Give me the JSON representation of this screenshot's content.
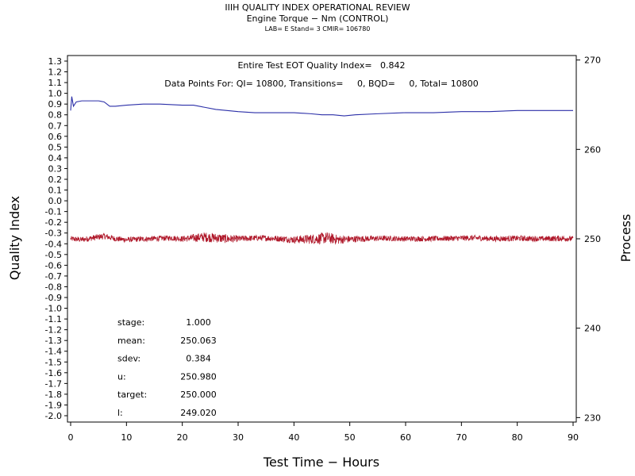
{
  "header": {
    "title": "IIIH QUALITY INDEX OPERATIONAL REVIEW",
    "subtitle": "Engine Torque − Nm (CONTROL)",
    "lab_line": "LAB= E Stand= 3 CMIR= 106780"
  },
  "annotations": {
    "line1": "Entire Test EOT Quality Index=   0.842",
    "line2": "Data Points For: QI= 10800, Transitions=     0, BQD=     0, Total= 10800"
  },
  "stats": [
    {
      "label": "stage:",
      "value": "1.000"
    },
    {
      "label": "mean:",
      "value": "250.063"
    },
    {
      "label": "sdev:",
      "value": "0.384"
    },
    {
      "label": "u:",
      "value": "250.980"
    },
    {
      "label": "target:",
      "value": "250.000"
    },
    {
      "label": "l:",
      "value": "249.020"
    }
  ],
  "chart_data": {
    "type": "line",
    "xlabel": "Test Time − Hours",
    "ylabel": "Quality Index",
    "y2label": "Process",
    "xlim": [
      0,
      90
    ],
    "ylim": [
      -2.0,
      1.3
    ],
    "y2lim": [
      229.5,
      270.5
    ],
    "x_ticks": [
      0,
      10,
      20,
      30,
      40,
      50,
      60,
      70,
      80,
      90
    ],
    "y_ticks": [
      "1.3",
      "1.2",
      "1.1",
      "1.0",
      "0.9",
      "0.8",
      "0.7",
      "0.6",
      "0.5",
      "0.4",
      "0.3",
      "0.2",
      "0.1",
      "0.0",
      "-0.1",
      "-0.2",
      "-0.3",
      "-0.4",
      "-0.5",
      "-0.6",
      "-0.7",
      "-0.8",
      "-0.9",
      "-1.0",
      "-1.1",
      "-1.2",
      "-1.3",
      "-1.4",
      "-1.5",
      "-1.6",
      "-1.7",
      "-1.8",
      "-1.9",
      "-2.0"
    ],
    "y2_ticks": [
      270,
      260,
      250,
      240,
      230
    ],
    "grid": false,
    "series": [
      {
        "axis": "left",
        "color": "#2b2fa8",
        "x": [
          0,
          0.2,
          0.5,
          1,
          2,
          3,
          4,
          5,
          6,
          7,
          8,
          10,
          13,
          16,
          20,
          22,
          24,
          26,
          28,
          30,
          33,
          36,
          40,
          43,
          45,
          47,
          49,
          51,
          55,
          60,
          65,
          70,
          75,
          80,
          85,
          90
        ],
        "y": [
          0.84,
          0.97,
          0.88,
          0.92,
          0.93,
          0.93,
          0.93,
          0.93,
          0.92,
          0.88,
          0.88,
          0.89,
          0.9,
          0.9,
          0.89,
          0.89,
          0.87,
          0.85,
          0.84,
          0.83,
          0.82,
          0.82,
          0.82,
          0.81,
          0.8,
          0.8,
          0.79,
          0.8,
          0.81,
          0.82,
          0.82,
          0.83,
          0.83,
          0.84,
          0.84,
          0.84
        ]
      },
      {
        "axis": "right",
        "color": "#b0192b",
        "x": [
          0,
          2,
          4,
          6,
          8,
          10,
          14,
          18,
          20,
          24,
          28,
          30,
          34,
          38,
          40,
          44,
          46,
          48,
          50,
          52,
          56,
          60,
          64,
          68,
          72,
          76,
          80,
          84,
          88,
          90
        ],
        "y": [
          250.0,
          249.9,
          250.1,
          250.3,
          250.0,
          249.9,
          250.0,
          250.1,
          250.0,
          250.2,
          250.0,
          250.0,
          250.1,
          250.0,
          249.9,
          250.0,
          250.1,
          249.9,
          249.95,
          250.0,
          250.05,
          250.0,
          250.0,
          250.05,
          250.1,
          250.0,
          250.05,
          250.0,
          250.05,
          250.0
        ],
        "band": [
          0.3,
          0.3,
          0.32,
          0.35,
          0.3,
          0.3,
          0.3,
          0.3,
          0.32,
          0.55,
          0.5,
          0.35,
          0.32,
          0.35,
          0.4,
          0.6,
          0.65,
          0.5,
          0.4,
          0.35,
          0.3,
          0.3,
          0.3,
          0.3,
          0.32,
          0.3,
          0.32,
          0.3,
          0.33,
          0.3
        ]
      }
    ]
  }
}
